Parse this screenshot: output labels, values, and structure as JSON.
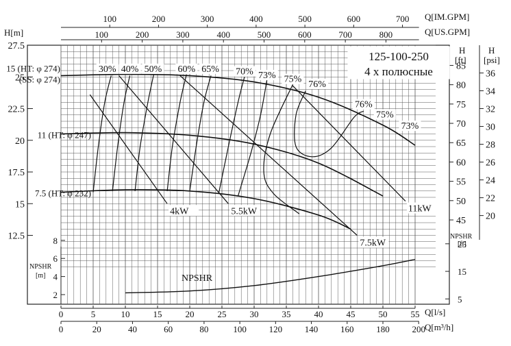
{
  "chart_data": {
    "type": "line",
    "model": "125-100-250",
    "poles": "4 x полюсные",
    "axes": {
      "x_ls": {
        "label": "Q[l/s]",
        "ticks": [
          0,
          5,
          10,
          15,
          20,
          25,
          30,
          35,
          40,
          45,
          50,
          55
        ],
        "range": [
          0,
          57
        ]
      },
      "x_m3h": {
        "label": "Q[m³/h]",
        "ticks": [
          0,
          20,
          40,
          60,
          80,
          100,
          120,
          140,
          160,
          180,
          200
        ]
      },
      "x_usgpm": {
        "label": "Q[US.GPM]",
        "ticks": [
          100,
          200,
          300,
          400,
          500,
          600,
          700,
          800
        ]
      },
      "x_imgpm": {
        "label": "Q[IM.GPM]",
        "ticks": [
          100,
          200,
          300,
          400,
          500,
          600,
          700
        ]
      },
      "y_head_m": {
        "label": "H[m]",
        "ticks": [
          "27.5",
          "25",
          "22.5",
          "20",
          "17.5",
          "15",
          "12.5"
        ],
        "range": [
          10,
          27.5
        ]
      },
      "y_head_ft": {
        "label_top": "H",
        "label_unit": "[ft]",
        "ticks": [
          45,
          50,
          55,
          60,
          65,
          70,
          75,
          80,
          85
        ]
      },
      "y_head_psi": {
        "label_top": "H",
        "label_unit": "[psi]",
        "ticks": [
          20,
          22,
          24,
          26,
          28,
          30,
          32,
          34,
          36
        ]
      },
      "y_npshr_m": {
        "label_top": "NPSHR",
        "label_unit": "[m]",
        "ticks": [
          2,
          4,
          6,
          8
        ]
      },
      "y_npshr_ft": {
        "label_top": "NPSHR",
        "label_unit": "[ft]",
        "ticks": [
          5,
          15,
          25
        ]
      }
    },
    "impeller_curves": [
      {
        "label_1": "15 (HT: φ 274)",
        "label_2": "(SS: φ 274)",
        "points": [
          [
            0,
            25.1
          ],
          [
            10,
            25.2
          ],
          [
            20,
            25.1
          ],
          [
            30,
            24.6
          ],
          [
            40,
            23.4
          ],
          [
            50,
            21.2
          ],
          [
            55,
            19.6
          ]
        ]
      },
      {
        "label_1": "11 (HT: φ 247)",
        "points": [
          [
            0,
            20.5
          ],
          [
            10,
            20.6
          ],
          [
            20,
            20.4
          ],
          [
            30,
            19.7
          ],
          [
            40,
            18.2
          ],
          [
            50,
            15.6
          ]
        ]
      },
      {
        "label_1": "7.5 (HT: φ 232)",
        "points": [
          [
            0,
            15.9
          ],
          [
            10,
            16.1
          ],
          [
            20,
            16.0
          ],
          [
            30,
            15.4
          ],
          [
            40,
            14.1
          ],
          [
            45,
            13.0
          ]
        ]
      }
    ],
    "power_curves": [
      {
        "label": "4kW",
        "points": [
          [
            4.5,
            23.6
          ],
          [
            16.5,
            15.0
          ]
        ]
      },
      {
        "label": "5.5kW",
        "points": [
          [
            9,
            25.1
          ],
          [
            26,
            15.0
          ]
        ]
      },
      {
        "label": "7.5kW",
        "points": [
          [
            18.5,
            25.1
          ],
          [
            46,
            12.5
          ]
        ]
      },
      {
        "label": "11kW",
        "points": [
          [
            36,
            24.3
          ],
          [
            53.5,
            15.2
          ]
        ]
      }
    ],
    "efficiency_labels": [
      {
        "text": "30%",
        "q": 7.2,
        "h": 25.4
      },
      {
        "text": "40%",
        "q": 10.7,
        "h": 25.4
      },
      {
        "text": "50%",
        "q": 14.3,
        "h": 25.4
      },
      {
        "text": "60%",
        "q": 19.5,
        "h": 25.4
      },
      {
        "text": "65%",
        "q": 23.2,
        "h": 25.4
      },
      {
        "text": "70%",
        "q": 28.5,
        "h": 25.2
      },
      {
        "text": "73%",
        "q": 32.0,
        "h": 24.9
      },
      {
        "text": "75%",
        "q": 36.0,
        "h": 24.6
      },
      {
        "text": "76%",
        "q": 39.8,
        "h": 24.2
      },
      {
        "text": "76%",
        "q": 47.0,
        "h": 22.6
      },
      {
        "text": "75%",
        "q": 50.3,
        "h": 21.8
      },
      {
        "text": "73%",
        "q": 54.2,
        "h": 20.9
      }
    ],
    "efficiency_curves": [
      {
        "text": "30%",
        "points": [
          [
            5,
            15.9
          ],
          [
            5.8,
            19.5
          ],
          [
            6.8,
            23.0
          ],
          [
            7.8,
            25.1
          ]
        ]
      },
      {
        "text": "40%",
        "points": [
          [
            8,
            16.0
          ],
          [
            8.8,
            19.5
          ],
          [
            9.8,
            23.0
          ],
          [
            10.7,
            25.1
          ]
        ]
      },
      {
        "text": "50%",
        "points": [
          [
            11.5,
            16.0
          ],
          [
            12.3,
            19.5
          ],
          [
            13.5,
            23.0
          ],
          [
            14.4,
            25.2
          ]
        ]
      },
      {
        "text": "60%",
        "points": [
          [
            16.5,
            16.0
          ],
          [
            17.3,
            19.5
          ],
          [
            18.5,
            23.0
          ],
          [
            19.5,
            25.2
          ]
        ]
      },
      {
        "text": "65%",
        "points": [
          [
            20,
            16.0
          ],
          [
            21,
            19.5
          ],
          [
            22.2,
            23.0
          ],
          [
            23.3,
            25.1
          ]
        ]
      },
      {
        "text": "70%",
        "points": [
          [
            24.5,
            15.8
          ],
          [
            26,
            19.5
          ],
          [
            27.5,
            23.0
          ],
          [
            28.5,
            25.0
          ]
        ]
      },
      {
        "text": "73%",
        "points": [
          [
            27.5,
            15.6
          ],
          [
            29.5,
            19.0
          ],
          [
            31,
            22.0
          ],
          [
            32,
            24.8
          ]
        ]
      },
      {
        "text": "75%",
        "points": [
          [
            37,
            14.2
          ],
          [
            33,
            15.8
          ],
          [
            31.5,
            17.5
          ],
          [
            32.5,
            20.5
          ],
          [
            36,
            24.4
          ]
        ]
      },
      {
        "text": "76%",
        "points": [
          [
            38,
            23.9
          ],
          [
            36.5,
            22.0
          ],
          [
            36.5,
            19.5
          ],
          [
            39,
            18.7
          ],
          [
            42,
            19.4
          ],
          [
            45.5,
            21.8
          ],
          [
            47,
            22.3
          ]
        ]
      }
    ],
    "npshr": {
      "label": "NPSHR",
      "points": [
        [
          10,
          2.2
        ],
        [
          20,
          2.4
        ],
        [
          30,
          3.0
        ],
        [
          40,
          4.0
        ],
        [
          50,
          5.2
        ],
        [
          55,
          5.9
        ]
      ]
    }
  }
}
